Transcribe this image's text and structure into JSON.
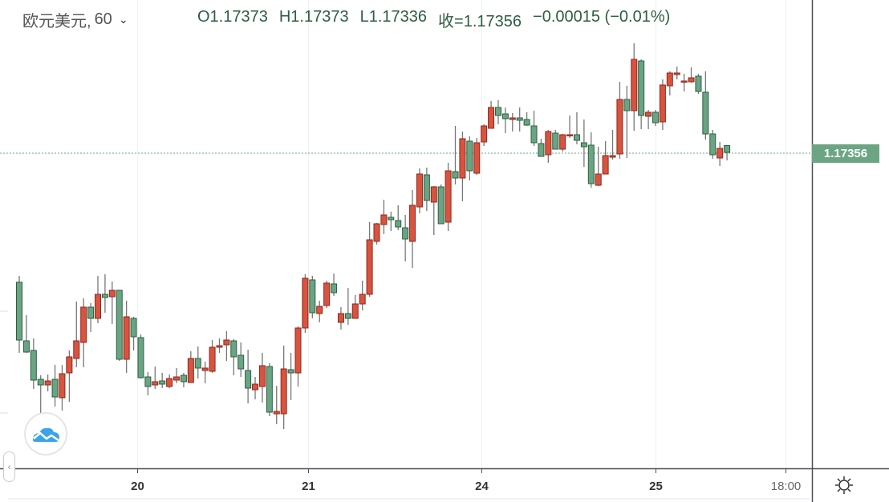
{
  "header": {
    "symbol": "欧元美元,",
    "interval": "60",
    "open": "O1.17373",
    "high": "H1.17373",
    "low": "L1.17336",
    "close": "收=1.17356",
    "change": "−0.00015 (−0.01%)"
  },
  "price_label": "1.17356",
  "colors": {
    "up": "#d9533f",
    "up_border": "#8b2a1f",
    "down": "#6aa583",
    "down_border": "#2d5e42",
    "wick": "#777777",
    "last_price": "#6ba583"
  },
  "icons": {
    "settings": "sun-gear-icon",
    "logo": "cloud-chart-logo",
    "collapse": "chevron-left-icon",
    "dropdown": "chevron-down-icon"
  },
  "chart_data": {
    "type": "candlestick",
    "title": "欧元美元, 60",
    "ylim": [
      1.16568,
      1.17736
    ],
    "last_price": 1.17356,
    "x_ticks": [
      {
        "label": "20",
        "index": 16.5
      },
      {
        "label": "21",
        "index": 40.4
      },
      {
        "label": "24",
        "index": 64.7
      },
      {
        "label": "25",
        "index": 89.0
      },
      {
        "label": "18:00",
        "index": 107.2
      }
    ],
    "ohlc": [
      [
        1.17032,
        1.17048,
        1.16856,
        1.16888
      ],
      [
        1.16886,
        1.1695,
        1.16856,
        1.16858
      ],
      [
        1.16862,
        1.16892,
        1.16766,
        1.16788
      ],
      [
        1.1679,
        1.168,
        1.16706,
        1.16776
      ],
      [
        1.16776,
        1.16802,
        1.1676,
        1.16786
      ],
      [
        1.1679,
        1.16826,
        1.16722,
        1.16746
      ],
      [
        1.16744,
        1.16826,
        1.16712,
        1.16804
      ],
      [
        1.16806,
        1.16862,
        1.16734,
        1.16846
      ],
      [
        1.16842,
        1.16984,
        1.1682,
        1.16886
      ],
      [
        1.16882,
        1.16992,
        1.1682,
        1.1697
      ],
      [
        1.1697,
        1.1698,
        1.16908,
        1.16942
      ],
      [
        1.16942,
        1.17048,
        1.1693,
        1.17002
      ],
      [
        1.17002,
        1.17052,
        1.16956,
        1.16994
      ],
      [
        1.16996,
        1.17034,
        1.16928,
        1.17012
      ],
      [
        1.17012,
        1.17012,
        1.16836,
        1.1684
      ],
      [
        1.1684,
        1.16986,
        1.16806,
        1.16946
      ],
      [
        1.16942,
        1.16946,
        1.16862,
        1.16896
      ],
      [
        1.16894,
        1.16902,
        1.16792,
        1.16794
      ],
      [
        1.16796,
        1.16808,
        1.1675,
        1.16772
      ],
      [
        1.16776,
        1.16822,
        1.16766,
        1.16784
      ],
      [
        1.16786,
        1.16806,
        1.16768,
        1.16778
      ],
      [
        1.16772,
        1.16802,
        1.16768,
        1.16792
      ],
      [
        1.16788,
        1.16818,
        1.1678,
        1.16796
      ],
      [
        1.168,
        1.16806,
        1.1677,
        1.16784
      ],
      [
        1.16782,
        1.1686,
        1.16782,
        1.16842
      ],
      [
        1.16842,
        1.16872,
        1.16792,
        1.16818
      ],
      [
        1.16812,
        1.16834,
        1.1678,
        1.16818
      ],
      [
        1.1681,
        1.16888,
        1.16806,
        1.1687
      ],
      [
        1.1687,
        1.16892,
        1.16856,
        1.16874
      ],
      [
        1.16876,
        1.1691,
        1.16836,
        1.16888
      ],
      [
        1.16886,
        1.1689,
        1.168,
        1.16846
      ],
      [
        1.1685,
        1.16882,
        1.16796,
        1.16816
      ],
      [
        1.16812,
        1.16864,
        1.1673,
        1.16768
      ],
      [
        1.16764,
        1.16796,
        1.1674,
        1.16778
      ],
      [
        1.16772,
        1.16856,
        1.16732,
        1.16824
      ],
      [
        1.16822,
        1.1683,
        1.16698,
        1.16708
      ],
      [
        1.16704,
        1.16774,
        1.16678,
        1.1671
      ],
      [
        1.16704,
        1.16874,
        1.16666,
        1.16816
      ],
      [
        1.16814,
        1.16856,
        1.16738,
        1.16806
      ],
      [
        1.16806,
        1.16922,
        1.16772,
        1.16918
      ],
      [
        1.16918,
        1.17052,
        1.16906,
        1.17042
      ],
      [
        1.17038,
        1.17048,
        1.16942,
        1.16956
      ],
      [
        1.16954,
        1.16986,
        1.16932,
        1.16972
      ],
      [
        1.16974,
        1.17036,
        1.16968,
        1.1703
      ],
      [
        1.17028,
        1.17054,
        1.16998,
        1.17006
      ],
      [
        1.16932,
        1.1697,
        1.16914,
        1.16954
      ],
      [
        1.16954,
        1.17018,
        1.16926,
        1.16942
      ],
      [
        1.16942,
        1.17,
        1.16942,
        1.16978
      ],
      [
        1.16978,
        1.17036,
        1.16962,
        1.17002
      ],
      [
        1.17002,
        1.17182,
        1.16996,
        1.17138
      ],
      [
        1.17134,
        1.1718,
        1.17126,
        1.17178
      ],
      [
        1.17176,
        1.17238,
        1.17152,
        1.172
      ],
      [
        1.17194,
        1.17208,
        1.1716,
        1.17188
      ],
      [
        1.17186,
        1.17224,
        1.17162,
        1.1717
      ],
      [
        1.17168,
        1.172,
        1.17084,
        1.1714
      ],
      [
        1.17134,
        1.17262,
        1.17068,
        1.17224
      ],
      [
        1.1722,
        1.17316,
        1.17204,
        1.17302
      ],
      [
        1.173,
        1.17318,
        1.1721,
        1.17236
      ],
      [
        1.17232,
        1.17272,
        1.1715,
        1.1727
      ],
      [
        1.1727,
        1.17276,
        1.17178,
        1.17178
      ],
      [
        1.17182,
        1.1733,
        1.1716,
        1.1731
      ],
      [
        1.17308,
        1.17422,
        1.17276,
        1.17292
      ],
      [
        1.17292,
        1.17408,
        1.17234,
        1.1739
      ],
      [
        1.17384,
        1.17396,
        1.17286,
        1.1731
      ],
      [
        1.17304,
        1.17392,
        1.173,
        1.1738
      ],
      [
        1.17382,
        1.17426,
        1.17372,
        1.17422
      ],
      [
        1.17416,
        1.17484,
        1.17416,
        1.17468
      ],
      [
        1.17468,
        1.17486,
        1.17426,
        1.17448
      ],
      [
        1.17452,
        1.17468,
        1.17404,
        1.1744
      ],
      [
        1.17438,
        1.17454,
        1.17408,
        1.17442
      ],
      [
        1.17442,
        1.17468,
        1.17408,
        1.17436
      ],
      [
        1.17438,
        1.17456,
        1.17422,
        1.17424
      ],
      [
        1.17422,
        1.1746,
        1.17372,
        1.1738
      ],
      [
        1.17378,
        1.1739,
        1.17346,
        1.17346
      ],
      [
        1.1735,
        1.17412,
        1.1733,
        1.17408
      ],
      [
        1.17404,
        1.17412,
        1.17364,
        1.17364
      ],
      [
        1.17364,
        1.17402,
        1.17358,
        1.174
      ],
      [
        1.17398,
        1.17448,
        1.17392,
        1.174
      ],
      [
        1.174,
        1.17456,
        1.17376,
        1.17386
      ],
      [
        1.1738,
        1.17438,
        1.1732,
        1.1737
      ],
      [
        1.17374,
        1.17406,
        1.17268,
        1.17278
      ],
      [
        1.17274,
        1.1737,
        1.17272,
        1.17302
      ],
      [
        1.17302,
        1.17384,
        1.17302,
        1.17348
      ],
      [
        1.17344,
        1.17412,
        1.17338,
        1.17348
      ],
      [
        1.17352,
        1.17532,
        1.1734,
        1.17488
      ],
      [
        1.17488,
        1.17522,
        1.17342,
        1.1746
      ],
      [
        1.1746,
        1.17628,
        1.1741,
        1.17588
      ],
      [
        1.17584,
        1.17588,
        1.17414,
        1.17448
      ],
      [
        1.17446,
        1.17462,
        1.17414,
        1.17456
      ],
      [
        1.17456,
        1.17462,
        1.17422,
        1.1743
      ],
      [
        1.17432,
        1.17538,
        1.17412,
        1.17524
      ],
      [
        1.17522,
        1.17558,
        1.17498,
        1.17554
      ],
      [
        1.1755,
        1.1757,
        1.17538,
        1.17554
      ],
      [
        1.17532,
        1.17552,
        1.17508,
        1.17534
      ],
      [
        1.17532,
        1.17568,
        1.1753,
        1.17542
      ],
      [
        1.17546,
        1.17552,
        1.17502,
        1.17508
      ],
      [
        1.17506,
        1.17558,
        1.17388,
        1.17402
      ],
      [
        1.17402,
        1.17412,
        1.1734,
        1.1735
      ],
      [
        1.17342,
        1.17382,
        1.17322,
        1.17366
      ],
      [
        1.17373,
        1.17373,
        1.17336,
        1.17356
      ]
    ]
  }
}
